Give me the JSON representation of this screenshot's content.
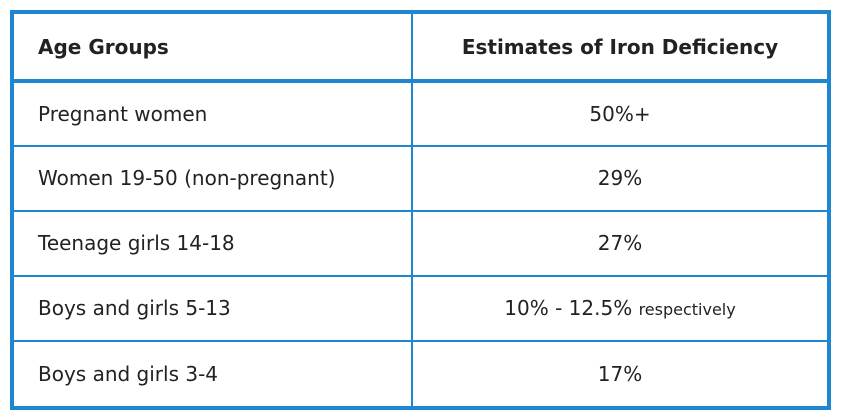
{
  "table": {
    "headers": [
      "Age Groups",
      "Estimates of Iron Deficiency"
    ],
    "rows": [
      {
        "group": "Pregnant women",
        "estimate": "50%+",
        "note": ""
      },
      {
        "group": "Women 19-50 (non-pregnant)",
        "estimate": "29%",
        "note": ""
      },
      {
        "group": "Teenage girls 14-18",
        "estimate": "27%",
        "note": ""
      },
      {
        "group": "Boys and girls 5-13",
        "estimate": "10% - 12.5%",
        "note": "respectively"
      },
      {
        "group": "Boys and girls 3-4",
        "estimate": "17%",
        "note": ""
      }
    ]
  },
  "colors": {
    "border": "#1f86d0",
    "text": "#222222"
  }
}
